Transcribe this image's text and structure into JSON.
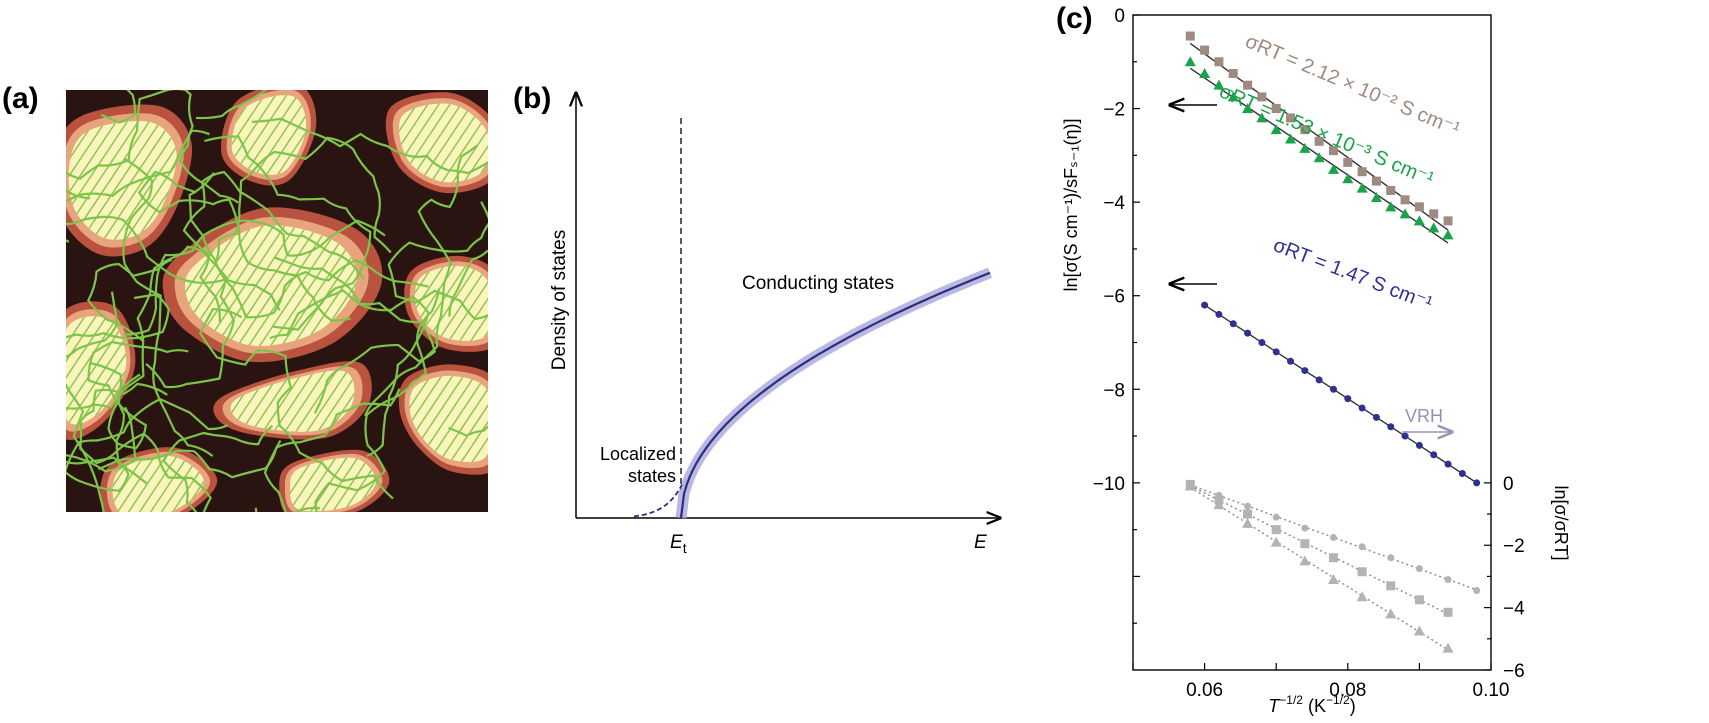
{
  "panels": {
    "a": {
      "label": "(a)"
    },
    "b": {
      "label": "(b)",
      "ylabel": "Density of states",
      "xlabel": "E",
      "threshold_label": "E",
      "threshold_subscript": "t",
      "localized_line1": "Localized",
      "localized_line2": "states",
      "conducting": "Conducting states",
      "curve_color": "#2b2e7a",
      "band_color": "#a9a8dd"
    },
    "c": {
      "label": "(c)",
      "xlabel": "T",
      "xlabel_exp": "−1/2",
      "xlabel_unit": " (K",
      "xlabel_unit_exp": "−1/2",
      "xlabel_close": ")",
      "ylabel": "ln[σ(S cm⁻¹)/sFₛ₋₁(η)]",
      "y2label": "ln[σ/σRT]",
      "vrh": "VRH",
      "annotations": [
        {
          "text": "σRT = 2.12 × 10⁻² S cm⁻¹",
          "color": "#9e8a80"
        },
        {
          "text": "σRT = 1.53 × 10⁻³ S cm⁻¹",
          "color": "#1aa34a"
        },
        {
          "text": "σRT = 1.47 S cm⁻¹",
          "color": "#2e3191"
        }
      ]
    }
  },
  "chart_data": [
    {
      "type": "line",
      "panel": "b",
      "xlabel": "E",
      "ylabel": "Density of states",
      "series": [
        {
          "name": "Conducting states",
          "shape": "square-root onset at E_t"
        },
        {
          "name": "Localized states",
          "shape": "dashed tail below E_t"
        }
      ]
    },
    {
      "type": "scatter",
      "panel": "c",
      "xlabel": "T⁻¹ᐟ² (K⁻¹ᐟ²)",
      "ylabel": "ln[σ(S cm⁻¹)/sFₛ₋₁(η)]",
      "y2label": "ln[σ/σRT]",
      "xlim": [
        0.05,
        0.1
      ],
      "ylim": [
        -14,
        0
      ],
      "y2lim": [
        -6,
        0
      ],
      "xticks": [
        "0.06",
        "0.08",
        "0.10"
      ],
      "yticks": [
        "0",
        "−2",
        "−4",
        "−6",
        "−8",
        "−10"
      ],
      "y2ticks": [
        "0",
        "−2",
        "−4",
        "−6"
      ],
      "series": [
        {
          "axis": "left",
          "marker": "square",
          "color": "#9e8a80",
          "sigma_rt": "2.12 × 10⁻² S cm⁻¹",
          "x": [
            0.058,
            0.06,
            0.062,
            0.064,
            0.066,
            0.068,
            0.07,
            0.072,
            0.074,
            0.076,
            0.078,
            0.08,
            0.082,
            0.084,
            0.086,
            0.088,
            0.09,
            0.092,
            0.094
          ],
          "values": [
            -0.45,
            -0.75,
            -1.0,
            -1.25,
            -1.5,
            -1.75,
            -2.0,
            -2.2,
            -2.45,
            -2.7,
            -2.9,
            -3.15,
            -3.35,
            -3.55,
            -3.75,
            -3.95,
            -4.1,
            -4.25,
            -4.4
          ]
        },
        {
          "axis": "left",
          "marker": "triangle",
          "color": "#1aa34a",
          "sigma_rt": "1.53 × 10⁻³ S cm⁻¹",
          "x": [
            0.058,
            0.06,
            0.062,
            0.064,
            0.066,
            0.068,
            0.07,
            0.072,
            0.074,
            0.076,
            0.078,
            0.08,
            0.082,
            0.084,
            0.086,
            0.088,
            0.09,
            0.092,
            0.094
          ],
          "values": [
            -1.0,
            -1.25,
            -1.5,
            -1.75,
            -2.0,
            -2.2,
            -2.45,
            -2.65,
            -2.85,
            -3.05,
            -3.3,
            -3.5,
            -3.7,
            -3.9,
            -4.1,
            -4.25,
            -4.4,
            -4.55,
            -4.7
          ]
        },
        {
          "axis": "left",
          "marker": "circle",
          "color": "#2e3191",
          "sigma_rt": "1.47 S cm⁻¹",
          "x": [
            0.06,
            0.062,
            0.064,
            0.066,
            0.068,
            0.07,
            0.072,
            0.074,
            0.076,
            0.078,
            0.08,
            0.082,
            0.084,
            0.086,
            0.088,
            0.09,
            0.092,
            0.094,
            0.096,
            0.098
          ],
          "values": [
            -6.2,
            -6.4,
            -6.6,
            -6.8,
            -7.0,
            -7.2,
            -7.4,
            -7.6,
            -7.8,
            -8.0,
            -8.2,
            -8.4,
            -8.6,
            -8.8,
            -9.0,
            -9.2,
            -9.4,
            -9.6,
            -9.8,
            -10.0
          ]
        },
        {
          "axis": "right",
          "marker": "circle",
          "color": "#b3b3b3",
          "x": [
            0.058,
            0.062,
            0.066,
            0.07,
            0.074,
            0.078,
            0.082,
            0.086,
            0.09,
            0.094,
            0.098
          ],
          "values": [
            -0.05,
            -0.4,
            -0.75,
            -1.1,
            -1.45,
            -1.75,
            -2.05,
            -2.4,
            -2.75,
            -3.1,
            -3.45
          ]
        },
        {
          "axis": "right",
          "marker": "square",
          "color": "#b3b3b3",
          "x": [
            0.058,
            0.062,
            0.066,
            0.07,
            0.074,
            0.078,
            0.082,
            0.086,
            0.09,
            0.094
          ],
          "values": [
            -0.05,
            -0.55,
            -1.0,
            -1.5,
            -1.95,
            -2.4,
            -2.85,
            -3.3,
            -3.75,
            -4.15
          ]
        },
        {
          "axis": "right",
          "marker": "triangle",
          "color": "#b3b3b3",
          "x": [
            0.058,
            0.062,
            0.066,
            0.07,
            0.074,
            0.078,
            0.082,
            0.086,
            0.09,
            0.094
          ],
          "values": [
            -0.1,
            -0.7,
            -1.3,
            -1.9,
            -2.5,
            -3.1,
            -3.65,
            -4.2,
            -4.75,
            -5.3
          ]
        }
      ]
    }
  ]
}
